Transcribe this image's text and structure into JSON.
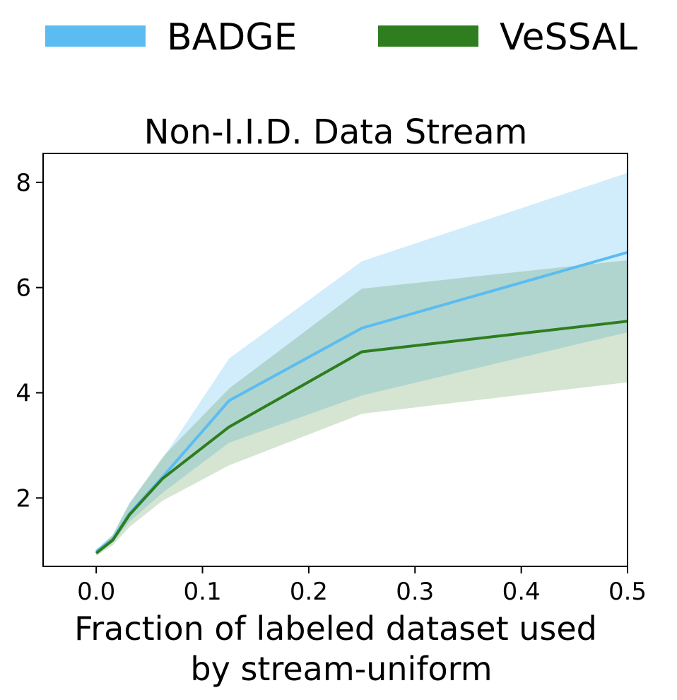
{
  "chart_data": {
    "type": "line",
    "title": "Non-I.I.D. Data Stream",
    "xlabel": [
      "Fraction of labeled dataset used",
      "by stream-uniform"
    ],
    "ylabel": "",
    "xlim": [
      -0.05,
      0.5
    ],
    "ylim": [
      0.7,
      8.55
    ],
    "xticks": [
      0.0,
      0.1,
      0.2,
      0.3,
      0.4,
      0.5
    ],
    "xtick_labels": [
      "0.0",
      "0.1",
      "0.2",
      "0.3",
      "0.4",
      "0.5"
    ],
    "yticks": [
      2,
      4,
      6,
      8
    ],
    "ytick_labels": [
      "2",
      "4",
      "6",
      "8"
    ],
    "grid": false,
    "legend_position": "top, outside plot",
    "x": [
      0.0,
      0.0156,
      0.03125,
      0.0625,
      0.125,
      0.25,
      0.5
    ],
    "series": [
      {
        "name": "BADGE",
        "color": "#5bbcf2",
        "values": [
          0.98,
          1.22,
          1.7,
          2.4,
          3.85,
          5.23,
          6.67
        ],
        "lower": [
          0.93,
          1.15,
          1.55,
          2.1,
          3.05,
          3.95,
          5.15
        ],
        "upper": [
          1.03,
          1.3,
          1.9,
          2.75,
          4.65,
          6.5,
          8.18
        ]
      },
      {
        "name": "VeSSAL",
        "color": "#2e7d1e",
        "values": [
          0.95,
          1.2,
          1.68,
          2.37,
          3.35,
          4.78,
          5.36
        ],
        "lower": [
          0.9,
          1.1,
          1.45,
          1.95,
          2.62,
          3.6,
          4.2
        ],
        "upper": [
          1.0,
          1.3,
          1.9,
          2.78,
          4.08,
          5.98,
          6.52
        ]
      }
    ]
  }
}
